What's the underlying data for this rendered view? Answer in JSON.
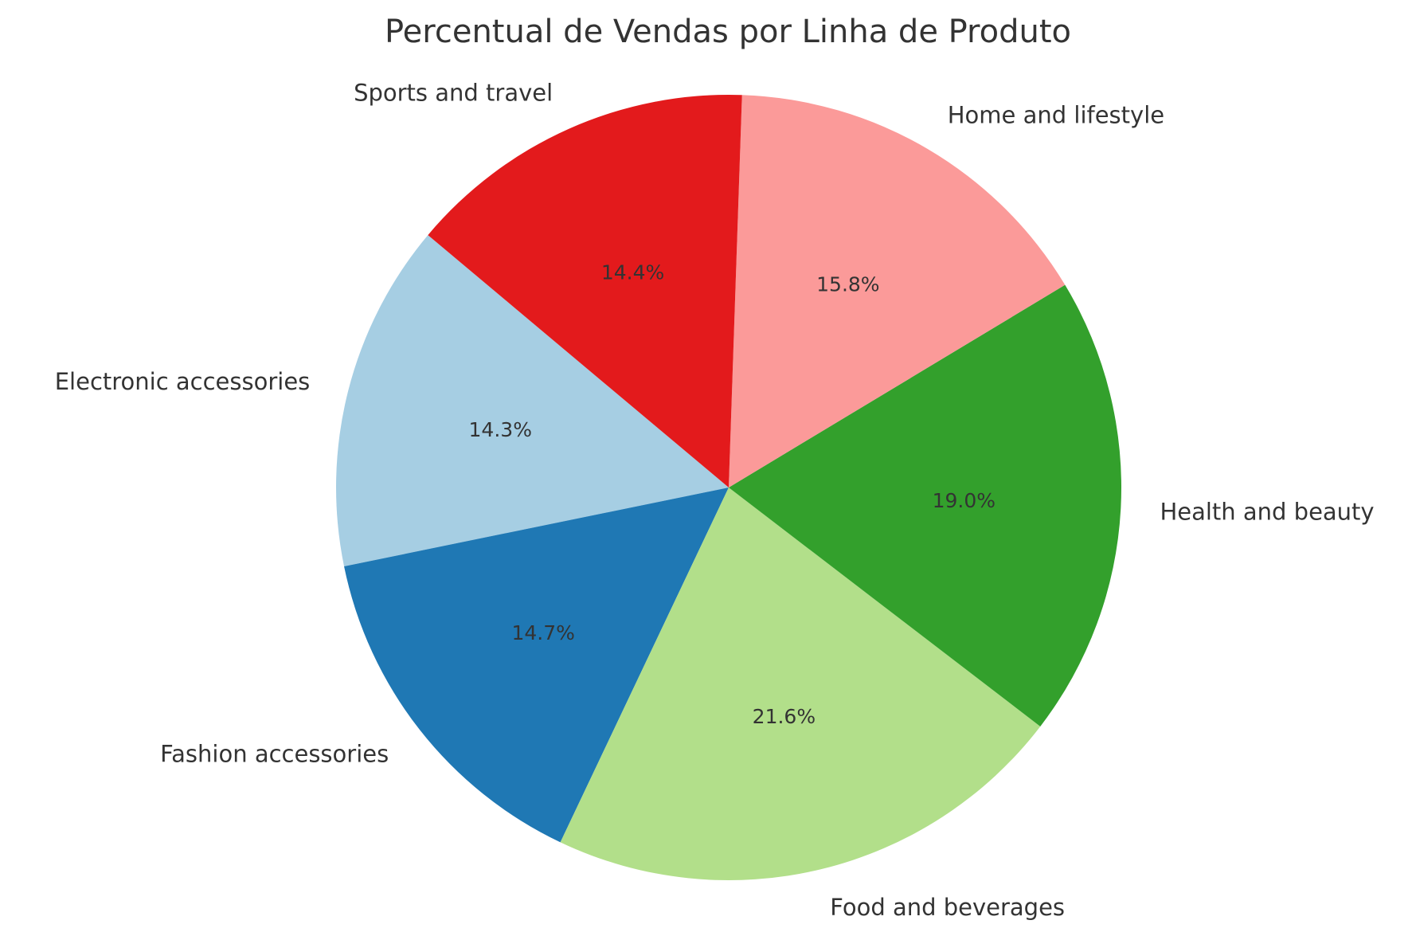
{
  "chart_data": {
    "type": "pie",
    "title": "Percentual de Vendas por Linha de Produto",
    "slices": [
      {
        "label": "Electronic accessories",
        "value": 14.3,
        "pct_label": "14.3%",
        "color": "#a6cee3"
      },
      {
        "label": "Fashion accessories",
        "value": 14.7,
        "pct_label": "14.7%",
        "color": "#1f78b4"
      },
      {
        "label": "Food and beverages",
        "value": 21.6,
        "pct_label": "21.6%",
        "color": "#b2df8a"
      },
      {
        "label": "Health and beauty",
        "value": 19.0,
        "pct_label": "19.0%",
        "color": "#33a02c"
      },
      {
        "label": "Home and lifestyle",
        "value": 15.8,
        "pct_label": "15.8%",
        "color": "#fb9a99"
      },
      {
        "label": "Sports and travel",
        "value": 14.4,
        "pct_label": "14.4%",
        "color": "#e31a1c"
      }
    ],
    "start_angle_deg": 140,
    "direction": "counterclockwise"
  }
}
